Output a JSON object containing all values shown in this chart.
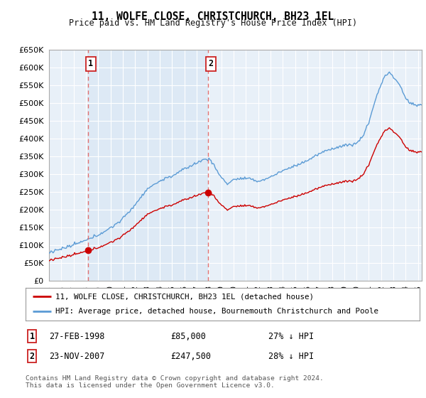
{
  "title": "11, WOLFE CLOSE, CHRISTCHURCH, BH23 1EL",
  "subtitle": "Price paid vs. HM Land Registry's House Price Index (HPI)",
  "legend_line1": "11, WOLFE CLOSE, CHRISTCHURCH, BH23 1EL (detached house)",
  "legend_line2": "HPI: Average price, detached house, Bournemouth Christchurch and Poole",
  "footnote": "Contains HM Land Registry data © Crown copyright and database right 2024.\nThis data is licensed under the Open Government Licence v3.0.",
  "sale1_date": "27-FEB-1998",
  "sale1_price": "£85,000",
  "sale1_hpi": "27% ↓ HPI",
  "sale1_year": 1998.15,
  "sale1_value": 85000,
  "sale2_date": "23-NOV-2007",
  "sale2_price": "£247,500",
  "sale2_hpi": "28% ↓ HPI",
  "sale2_year": 2007.9,
  "sale2_value": 247500,
  "ylim": [
    0,
    650000
  ],
  "xlim": [
    1995.0,
    2025.3
  ],
  "yticks": [
    0,
    50000,
    100000,
    150000,
    200000,
    250000,
    300000,
    350000,
    400000,
    450000,
    500000,
    550000,
    600000,
    650000
  ],
  "red_color": "#cc0000",
  "blue_color": "#5b9bd5",
  "grid_color": "#d0d8e8",
  "dashed_color": "#e07070",
  "plot_bg": "#e8f0f8",
  "shaded_bg": "#dce8f5"
}
